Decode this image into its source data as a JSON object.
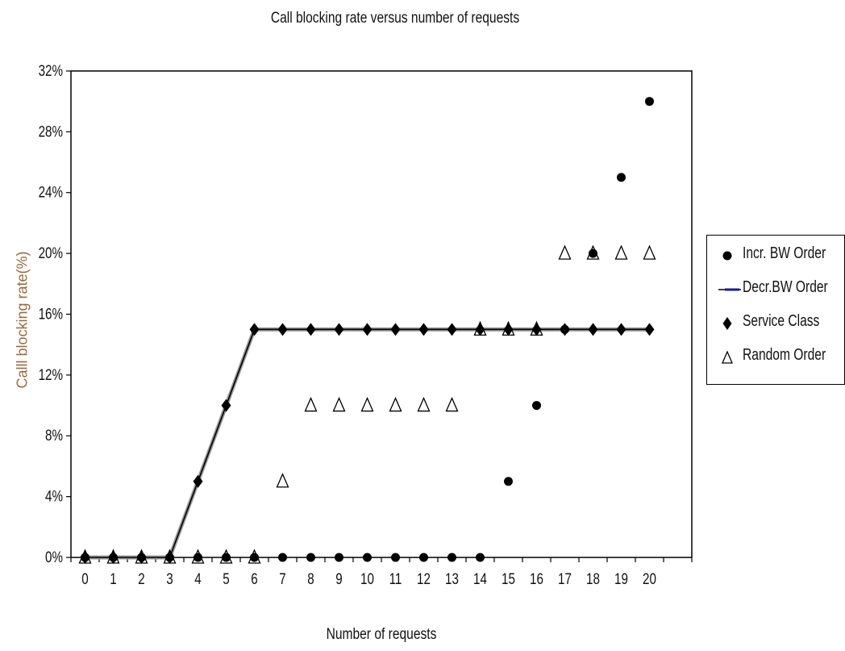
{
  "chart_data": {
    "type": "scatter",
    "title": "Call blocking rate versus number of requests",
    "xlabel": "Number of requests",
    "ylabel": "Calll blocking rate(%)",
    "xlim": [
      -0.5,
      21.5
    ],
    "ylim": [
      0,
      32
    ],
    "x_ticks": [
      "0",
      "1",
      "2",
      "3",
      "4",
      "5",
      "6",
      "7",
      "8",
      "9",
      "10",
      "11",
      "12",
      "13",
      "14",
      "15",
      "16",
      "17",
      "18",
      "19",
      "20"
    ],
    "y_ticks": [
      "0%",
      "4%",
      "8%",
      "12%",
      "16%",
      "20%",
      "24%",
      "28%",
      "32%"
    ],
    "grid": false,
    "legend_position": "right",
    "series": [
      {
        "name": "Incr. BW Order",
        "marker": "circle",
        "color": "#000000",
        "x": [
          0,
          1,
          2,
          3,
          4,
          5,
          6,
          7,
          8,
          9,
          10,
          11,
          12,
          13,
          14,
          15,
          16,
          17,
          18,
          19,
          20
        ],
        "y": [
          0,
          0,
          0,
          0,
          0,
          0,
          0,
          0,
          0,
          0,
          0,
          0,
          0,
          0,
          0,
          5,
          10,
          15,
          20,
          25,
          30
        ]
      },
      {
        "name": "Decr.BW Order",
        "marker": "line",
        "color": "#000000",
        "legend_color": "#1a1a8c",
        "x": [
          0,
          1,
          2,
          3,
          4,
          5,
          6,
          7,
          8,
          9,
          10,
          11,
          12,
          13,
          14,
          15,
          16,
          17,
          18,
          19,
          20
        ],
        "y": [
          0,
          0,
          0,
          0,
          5,
          10,
          15,
          15,
          15,
          15,
          15,
          15,
          15,
          15,
          15,
          15,
          15,
          15,
          15,
          15,
          15
        ]
      },
      {
        "name": "Service Class",
        "marker": "diamond",
        "color": "#000000",
        "x": [
          0,
          1,
          2,
          3,
          4,
          5,
          6,
          7,
          8,
          9,
          10,
          11,
          12,
          13,
          14,
          15,
          16,
          17,
          18,
          19,
          20
        ],
        "y": [
          0,
          0,
          0,
          0,
          5,
          10,
          15,
          15,
          15,
          15,
          15,
          15,
          15,
          15,
          15,
          15,
          15,
          15,
          15,
          15,
          15
        ]
      },
      {
        "name": "Random Order",
        "marker": "triangle",
        "color": "#000000",
        "x": [
          0,
          1,
          2,
          3,
          4,
          5,
          6,
          7,
          8,
          9,
          10,
          11,
          12,
          13,
          14,
          15,
          16,
          17,
          18,
          19,
          20
        ],
        "y": [
          0,
          0,
          0,
          0,
          0,
          0,
          0,
          5,
          10,
          10,
          10,
          10,
          10,
          10,
          15,
          15,
          15,
          20,
          20,
          20,
          20
        ]
      }
    ]
  }
}
